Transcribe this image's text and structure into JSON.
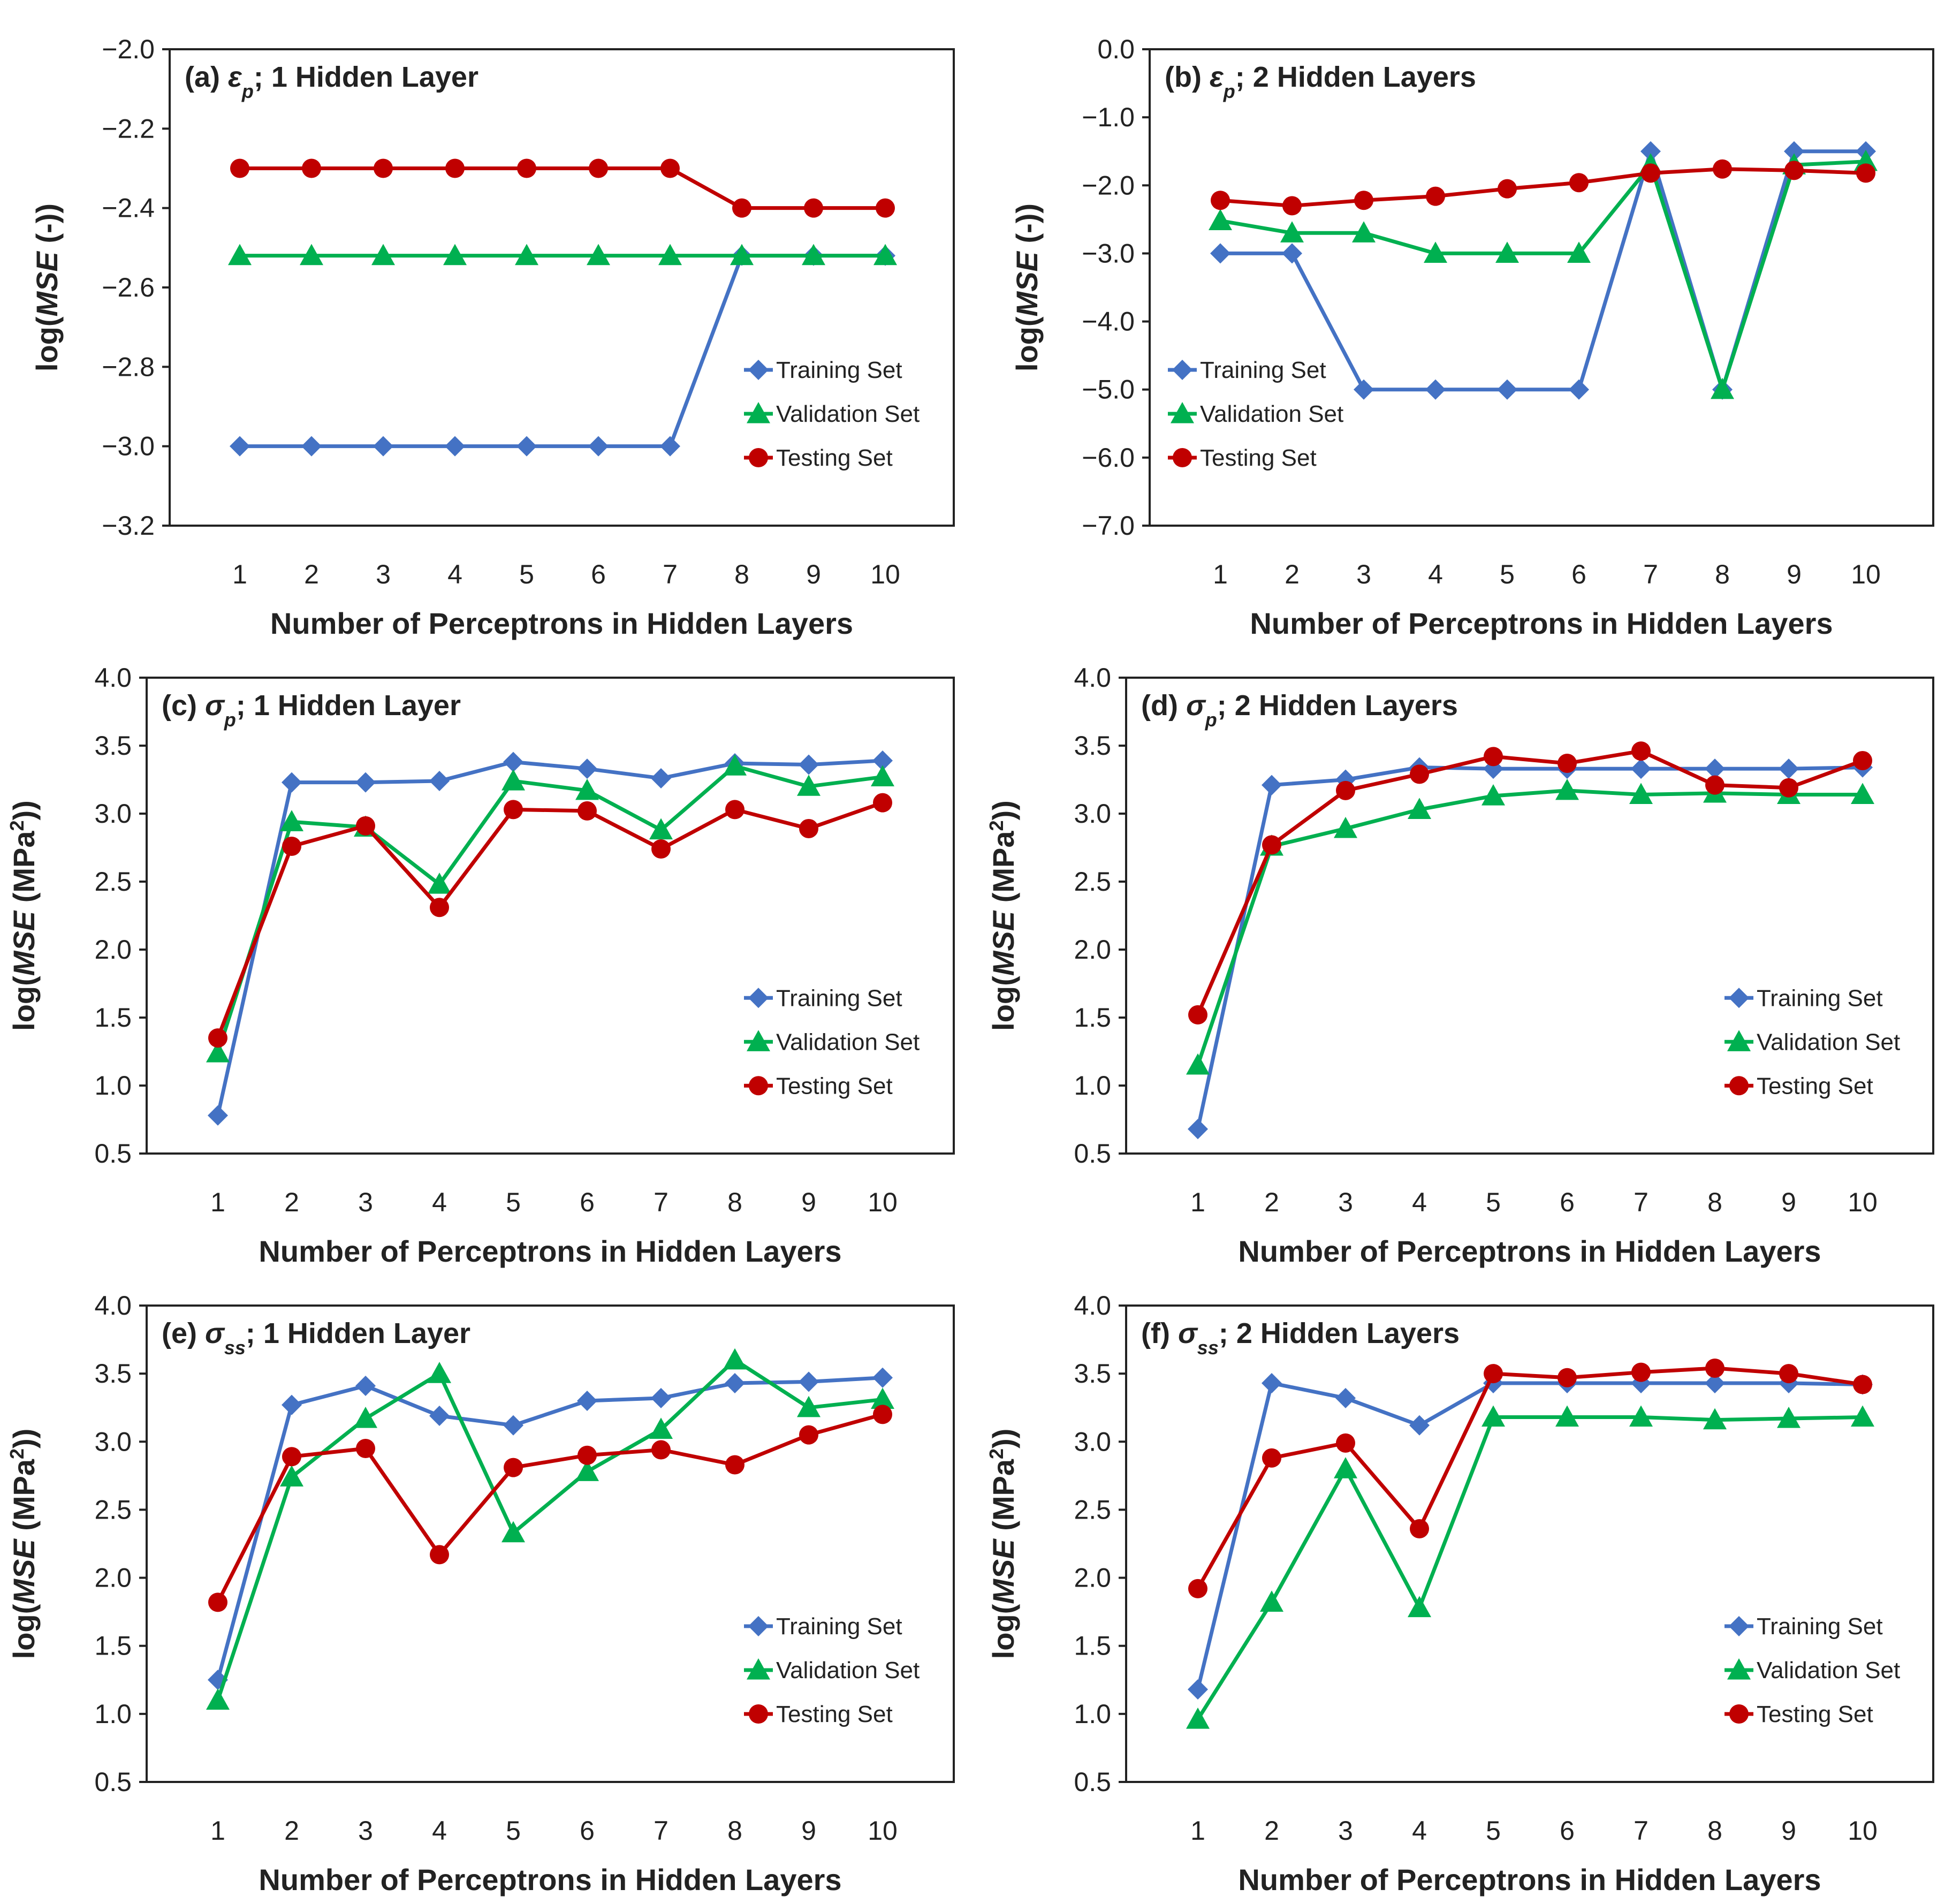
{
  "chart_data": [
    {
      "type": "line",
      "panel": "a",
      "title": {
        "prefix": "(a) ",
        "sym": "ε",
        "sub": "p",
        "suffix": "; 1 Hidden Layer"
      },
      "xlabel": "Number of Perceptrons in Hidden Layers",
      "ylabel": {
        "pre": "log(",
        "it": "MSE",
        "post": " (-)",
        "sup": ""
      },
      "categories": [
        "1",
        "2",
        "3",
        "4",
        "5",
        "6",
        "7",
        "8",
        "9",
        "10"
      ],
      "ylim": [
        -3.2,
        -2.0
      ],
      "yticks": [
        -3.2,
        -3.0,
        -2.8,
        -2.6,
        -2.4,
        -2.2,
        -2.0
      ],
      "ytick_labels": [
        "−3.2",
        "−3.0",
        "−2.8",
        "−2.6",
        "−2.4",
        "−2.2",
        "−2.0"
      ],
      "legend_position": "bottom-right",
      "series": [
        {
          "name": "Training Set",
          "marker": "diamond",
          "color": "#4472C4",
          "values": [
            -3.0,
            -3.0,
            -3.0,
            -3.0,
            -3.0,
            -3.0,
            -3.0,
            -2.52,
            -2.52,
            -2.52
          ]
        },
        {
          "name": "Validation Set",
          "marker": "triangle",
          "color": "#00B050",
          "values": [
            -2.52,
            -2.52,
            -2.52,
            -2.52,
            -2.52,
            -2.52,
            -2.52,
            -2.52,
            -2.52,
            -2.52
          ]
        },
        {
          "name": "Testing Set",
          "marker": "circle",
          "color": "#C00000",
          "values": [
            -2.3,
            -2.3,
            -2.3,
            -2.3,
            -2.3,
            -2.3,
            -2.3,
            -2.4,
            -2.4,
            -2.4
          ]
        }
      ]
    },
    {
      "type": "line",
      "panel": "b",
      "title": {
        "prefix": "(b) ",
        "sym": "ε",
        "sub": "p",
        "suffix": "; 2 Hidden Layers"
      },
      "xlabel": "Number of Perceptrons in Hidden Layers",
      "ylabel": {
        "pre": "log(",
        "it": "MSE",
        "post": " (-)",
        "sup": ""
      },
      "categories": [
        "1",
        "2",
        "3",
        "4",
        "5",
        "6",
        "7",
        "8",
        "9",
        "10"
      ],
      "ylim": [
        -7.0,
        0.0
      ],
      "yticks": [
        -7.0,
        -6.0,
        -5.0,
        -4.0,
        -3.0,
        -2.0,
        -1.0,
        0.0
      ],
      "ytick_labels": [
        "−7.0",
        "−6.0",
        "−5.0",
        "−4.0",
        "−3.0",
        "−2.0",
        "−1.0",
        "0.0"
      ],
      "legend_position": "bottom-left",
      "series": [
        {
          "name": "Training Set",
          "marker": "diamond",
          "color": "#4472C4",
          "values": [
            -3.0,
            -3.0,
            -5.0,
            -5.0,
            -5.0,
            -5.0,
            -1.5,
            -5.0,
            -1.5,
            -1.5
          ]
        },
        {
          "name": "Validation Set",
          "marker": "triangle",
          "color": "#00B050",
          "values": [
            -2.52,
            -2.7,
            -2.7,
            -3.0,
            -3.0,
            -3.0,
            -1.7,
            -5.0,
            -1.7,
            -1.65
          ]
        },
        {
          "name": "Testing Set",
          "marker": "circle",
          "color": "#C00000",
          "values": [
            -2.22,
            -2.3,
            -2.22,
            -2.16,
            -2.05,
            -1.96,
            -1.82,
            -1.76,
            -1.78,
            -1.82
          ]
        }
      ]
    },
    {
      "type": "line",
      "panel": "c",
      "title": {
        "prefix": "(c) ",
        "sym": "σ",
        "sub": "p",
        "suffix": "; 1 Hidden Layer"
      },
      "xlabel": "Number of Perceptrons in Hidden Layers",
      "ylabel": {
        "pre": "log(",
        "it": "MSE",
        "post": " (MPa",
        "sup": "2",
        "close": "))"
      },
      "categories": [
        "1",
        "2",
        "3",
        "4",
        "5",
        "6",
        "7",
        "8",
        "9",
        "10"
      ],
      "ylim": [
        0.5,
        4.0
      ],
      "yticks": [
        0.5,
        1.0,
        1.5,
        2.0,
        2.5,
        3.0,
        3.5,
        4.0
      ],
      "ytick_labels": [
        "0.5",
        "1.0",
        "1.5",
        "2.0",
        "2.5",
        "3.0",
        "3.5",
        "4.0"
      ],
      "legend_position": "bottom-right",
      "series": [
        {
          "name": "Training Set",
          "marker": "diamond",
          "color": "#4472C4",
          "values": [
            0.78,
            3.23,
            3.23,
            3.24,
            3.38,
            3.33,
            3.26,
            3.37,
            3.36,
            3.39
          ]
        },
        {
          "name": "Validation Set",
          "marker": "triangle",
          "color": "#00B050",
          "values": [
            1.24,
            2.94,
            2.9,
            2.48,
            3.24,
            3.17,
            2.88,
            3.35,
            3.2,
            3.27
          ]
        },
        {
          "name": "Testing Set",
          "marker": "circle",
          "color": "#C00000",
          "values": [
            1.35,
            2.76,
            2.91,
            2.31,
            3.03,
            3.02,
            2.74,
            3.03,
            2.89,
            3.08
          ]
        }
      ]
    },
    {
      "type": "line",
      "panel": "d",
      "title": {
        "prefix": "(d) ",
        "sym": "σ",
        "sub": "p",
        "suffix": "; 2 Hidden Layers"
      },
      "xlabel": "Number of Perceptrons in Hidden Layers",
      "ylabel": {
        "pre": "log(",
        "it": "MSE",
        "post": " (MPa",
        "sup": "2",
        "close": "))"
      },
      "categories": [
        "1",
        "2",
        "3",
        "4",
        "5",
        "6",
        "7",
        "8",
        "9",
        "10"
      ],
      "ylim": [
        0.5,
        4.0
      ],
      "yticks": [
        0.5,
        1.0,
        1.5,
        2.0,
        2.5,
        3.0,
        3.5,
        4.0
      ],
      "ytick_labels": [
        "0.5",
        "1.0",
        "1.5",
        "2.0",
        "2.5",
        "3.0",
        "3.5",
        "4.0"
      ],
      "legend_position": "bottom-right",
      "series": [
        {
          "name": "Training Set",
          "marker": "diamond",
          "color": "#4472C4",
          "values": [
            0.68,
            3.21,
            3.25,
            3.34,
            3.33,
            3.33,
            3.33,
            3.33,
            3.33,
            3.34
          ]
        },
        {
          "name": "Validation Set",
          "marker": "triangle",
          "color": "#00B050",
          "values": [
            1.15,
            2.76,
            2.89,
            3.03,
            3.13,
            3.17,
            3.14,
            3.15,
            3.14,
            3.14
          ]
        },
        {
          "name": "Testing Set",
          "marker": "circle",
          "color": "#C00000",
          "values": [
            1.52,
            2.77,
            3.17,
            3.29,
            3.42,
            3.37,
            3.46,
            3.21,
            3.19,
            3.39
          ]
        }
      ]
    },
    {
      "type": "line",
      "panel": "e",
      "title": {
        "prefix": "(e) ",
        "sym": "σ",
        "sub": "ss",
        "suffix": "; 1 Hidden Layer"
      },
      "xlabel": "Number of Perceptrons in Hidden Layers",
      "ylabel": {
        "pre": "log(",
        "it": "MSE",
        "post": " (MPa",
        "sup": "2",
        "close": "))"
      },
      "categories": [
        "1",
        "2",
        "3",
        "4",
        "5",
        "6",
        "7",
        "8",
        "9",
        "10"
      ],
      "ylim": [
        0.5,
        4.0
      ],
      "yticks": [
        0.5,
        1.0,
        1.5,
        2.0,
        2.5,
        3.0,
        3.5,
        4.0
      ],
      "ytick_labels": [
        "0.5",
        "1.0",
        "1.5",
        "2.0",
        "2.5",
        "3.0",
        "3.5",
        "4.0"
      ],
      "legend_position": "bottom-right",
      "series": [
        {
          "name": "Training Set",
          "marker": "diamond",
          "color": "#4472C4",
          "values": [
            1.25,
            3.27,
            3.41,
            3.19,
            3.12,
            3.3,
            3.32,
            3.43,
            3.44,
            3.47
          ]
        },
        {
          "name": "Validation Set",
          "marker": "triangle",
          "color": "#00B050",
          "values": [
            1.1,
            2.74,
            3.17,
            3.5,
            2.33,
            2.78,
            3.09,
            3.6,
            3.25,
            3.31
          ]
        },
        {
          "name": "Testing Set",
          "marker": "circle",
          "color": "#C00000",
          "values": [
            1.82,
            2.89,
            2.95,
            2.17,
            2.81,
            2.9,
            2.94,
            2.83,
            3.05,
            3.2
          ]
        }
      ]
    },
    {
      "type": "line",
      "panel": "f",
      "title": {
        "prefix": "(f) ",
        "sym": "σ",
        "sub": "ss",
        "suffix": "; 2 Hidden Layers"
      },
      "xlabel": "Number of Perceptrons in Hidden Layers",
      "ylabel": {
        "pre": "log(",
        "it": "MSE",
        "post": " (MPa",
        "sup": "2",
        "close": "))"
      },
      "categories": [
        "1",
        "2",
        "3",
        "4",
        "5",
        "6",
        "7",
        "8",
        "9",
        "10"
      ],
      "ylim": [
        0.5,
        4.0
      ],
      "yticks": [
        0.5,
        1.0,
        1.5,
        2.0,
        2.5,
        3.0,
        3.5,
        4.0
      ],
      "ytick_labels": [
        "0.5",
        "1.0",
        "1.5",
        "2.0",
        "2.5",
        "3.0",
        "3.5",
        "4.0"
      ],
      "legend_position": "bottom-right",
      "series": [
        {
          "name": "Training Set",
          "marker": "diamond",
          "color": "#4472C4",
          "values": [
            1.18,
            3.43,
            3.32,
            3.12,
            3.43,
            3.43,
            3.43,
            3.43,
            3.43,
            3.42
          ]
        },
        {
          "name": "Validation Set",
          "marker": "triangle",
          "color": "#00B050",
          "values": [
            0.96,
            1.82,
            2.8,
            1.78,
            3.18,
            3.18,
            3.18,
            3.16,
            3.17,
            3.18
          ]
        },
        {
          "name": "Testing Set",
          "marker": "circle",
          "color": "#C00000",
          "values": [
            1.92,
            2.88,
            2.99,
            2.36,
            3.5,
            3.47,
            3.51,
            3.54,
            3.5,
            3.42
          ]
        }
      ]
    }
  ]
}
